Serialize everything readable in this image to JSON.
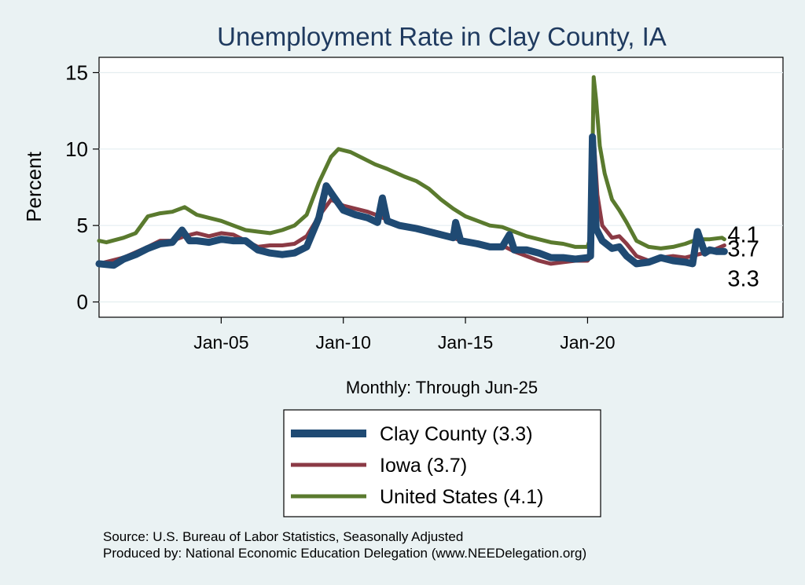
{
  "chart_data": {
    "type": "line",
    "title": "Unemployment Rate in Clay  County, IA",
    "ylabel": "Percent",
    "xlabel": "Monthly: Through Jun-25",
    "xlim": [
      2000.0,
      2028.0
    ],
    "ylim": [
      -1,
      16
    ],
    "yticks": [
      0,
      5,
      10,
      15
    ],
    "xticks": [
      {
        "value": 2005.0,
        "label": "Jan-05"
      },
      {
        "value": 2010.0,
        "label": "Jan-10"
      },
      {
        "value": 2015.0,
        "label": "Jan-15"
      },
      {
        "value": 2020.0,
        "label": "Jan-20"
      }
    ],
    "grid": true,
    "series": [
      {
        "name": "United States",
        "legend_label": "United States (4.1)",
        "color": "#5a7a2e",
        "end_value": "4.1",
        "points": [
          [
            2000.0,
            4.0
          ],
          [
            2000.3,
            3.9
          ],
          [
            2001.0,
            4.2
          ],
          [
            2001.5,
            4.5
          ],
          [
            2002.0,
            5.6
          ],
          [
            2002.5,
            5.8
          ],
          [
            2003.0,
            5.9
          ],
          [
            2003.5,
            6.2
          ],
          [
            2004.0,
            5.7
          ],
          [
            2004.5,
            5.5
          ],
          [
            2005.0,
            5.3
          ],
          [
            2005.5,
            5.0
          ],
          [
            2006.0,
            4.7
          ],
          [
            2006.5,
            4.6
          ],
          [
            2007.0,
            4.5
          ],
          [
            2007.5,
            4.7
          ],
          [
            2008.0,
            5.0
          ],
          [
            2008.5,
            5.7
          ],
          [
            2009.0,
            7.8
          ],
          [
            2009.5,
            9.5
          ],
          [
            2009.8,
            10.0
          ],
          [
            2010.3,
            9.8
          ],
          [
            2010.8,
            9.4
          ],
          [
            2011.3,
            9.0
          ],
          [
            2011.8,
            8.7
          ],
          [
            2012.5,
            8.2
          ],
          [
            2013.0,
            7.9
          ],
          [
            2013.5,
            7.4
          ],
          [
            2014.0,
            6.7
          ],
          [
            2014.5,
            6.1
          ],
          [
            2015.0,
            5.6
          ],
          [
            2015.5,
            5.3
          ],
          [
            2016.0,
            5.0
          ],
          [
            2016.5,
            4.9
          ],
          [
            2017.0,
            4.6
          ],
          [
            2017.5,
            4.3
          ],
          [
            2018.0,
            4.1
          ],
          [
            2018.5,
            3.9
          ],
          [
            2019.0,
            3.8
          ],
          [
            2019.5,
            3.6
          ],
          [
            2020.0,
            3.6
          ],
          [
            2020.15,
            4.4
          ],
          [
            2020.25,
            14.7
          ],
          [
            2020.35,
            13.2
          ],
          [
            2020.5,
            10.2
          ],
          [
            2020.7,
            8.4
          ],
          [
            2021.0,
            6.7
          ],
          [
            2021.3,
            6.0
          ],
          [
            2021.6,
            5.2
          ],
          [
            2022.0,
            4.0
          ],
          [
            2022.5,
            3.6
          ],
          [
            2023.0,
            3.5
          ],
          [
            2023.5,
            3.6
          ],
          [
            2024.0,
            3.8
          ],
          [
            2024.5,
            4.1
          ],
          [
            2025.0,
            4.1
          ],
          [
            2025.5,
            4.2
          ],
          [
            2025.6,
            4.1
          ]
        ]
      },
      {
        "name": "Iowa",
        "legend_label": "Iowa (3.7)",
        "color": "#8b3a45",
        "end_value": "3.7",
        "points": [
          [
            2000.0,
            2.5
          ],
          [
            2001.0,
            2.9
          ],
          [
            2002.0,
            3.6
          ],
          [
            2002.5,
            4.0
          ],
          [
            2003.0,
            4.0
          ],
          [
            2003.5,
            4.3
          ],
          [
            2004.0,
            4.5
          ],
          [
            2004.5,
            4.3
          ],
          [
            2005.0,
            4.5
          ],
          [
            2005.5,
            4.4
          ],
          [
            2006.0,
            4.0
          ],
          [
            2006.5,
            3.6
          ],
          [
            2007.0,
            3.7
          ],
          [
            2007.5,
            3.7
          ],
          [
            2008.0,
            3.8
          ],
          [
            2008.5,
            4.3
          ],
          [
            2009.0,
            5.6
          ],
          [
            2009.5,
            6.7
          ],
          [
            2010.0,
            6.3
          ],
          [
            2010.5,
            6.1
          ],
          [
            2011.0,
            5.9
          ],
          [
            2011.5,
            5.6
          ],
          [
            2012.0,
            5.2
          ],
          [
            2012.5,
            5.0
          ],
          [
            2013.0,
            4.9
          ],
          [
            2013.5,
            4.7
          ],
          [
            2014.0,
            4.5
          ],
          [
            2014.5,
            4.2
          ],
          [
            2015.0,
            3.9
          ],
          [
            2015.5,
            3.7
          ],
          [
            2016.0,
            3.7
          ],
          [
            2016.5,
            3.7
          ],
          [
            2017.0,
            3.3
          ],
          [
            2017.5,
            3.0
          ],
          [
            2018.0,
            2.7
          ],
          [
            2018.5,
            2.5
          ],
          [
            2019.0,
            2.6
          ],
          [
            2019.5,
            2.7
          ],
          [
            2020.0,
            2.7
          ],
          [
            2020.15,
            3.0
          ],
          [
            2020.25,
            10.8
          ],
          [
            2020.4,
            7.0
          ],
          [
            2020.6,
            5.0
          ],
          [
            2021.0,
            4.2
          ],
          [
            2021.3,
            4.3
          ],
          [
            2021.6,
            3.8
          ],
          [
            2022.0,
            3.0
          ],
          [
            2022.5,
            2.7
          ],
          [
            2023.0,
            2.9
          ],
          [
            2023.5,
            3.0
          ],
          [
            2024.0,
            2.9
          ],
          [
            2024.5,
            3.1
          ],
          [
            2025.0,
            3.3
          ],
          [
            2025.6,
            3.7
          ]
        ]
      },
      {
        "name": "Clay  County",
        "legend_label": "Clay  County (3.3)",
        "color": "#1f4a73",
        "end_value": "3.3",
        "points": [
          [
            2000.0,
            2.5
          ],
          [
            2000.6,
            2.4
          ],
          [
            2001.0,
            2.8
          ],
          [
            2001.5,
            3.1
          ],
          [
            2002.0,
            3.5
          ],
          [
            2002.5,
            3.8
          ],
          [
            2003.0,
            3.9
          ],
          [
            2003.4,
            4.7
          ],
          [
            2003.7,
            4.0
          ],
          [
            2004.0,
            4.0
          ],
          [
            2004.5,
            3.9
          ],
          [
            2005.0,
            4.1
          ],
          [
            2005.5,
            4.0
          ],
          [
            2006.0,
            4.0
          ],
          [
            2006.5,
            3.4
          ],
          [
            2007.0,
            3.2
          ],
          [
            2007.5,
            3.1
          ],
          [
            2008.0,
            3.2
          ],
          [
            2008.5,
            3.6
          ],
          [
            2009.0,
            5.5
          ],
          [
            2009.3,
            7.6
          ],
          [
            2009.6,
            6.9
          ],
          [
            2010.0,
            6.0
          ],
          [
            2010.5,
            5.7
          ],
          [
            2011.0,
            5.5
          ],
          [
            2011.4,
            5.2
          ],
          [
            2011.6,
            6.8
          ],
          [
            2011.8,
            5.3
          ],
          [
            2012.3,
            5.0
          ],
          [
            2013.0,
            4.8
          ],
          [
            2013.5,
            4.6
          ],
          [
            2014.0,
            4.4
          ],
          [
            2014.5,
            4.2
          ],
          [
            2014.6,
            5.2
          ],
          [
            2014.8,
            4.0
          ],
          [
            2015.5,
            3.8
          ],
          [
            2016.0,
            3.6
          ],
          [
            2016.5,
            3.6
          ],
          [
            2016.8,
            4.4
          ],
          [
            2017.0,
            3.4
          ],
          [
            2017.5,
            3.4
          ],
          [
            2018.0,
            3.2
          ],
          [
            2018.5,
            2.9
          ],
          [
            2019.0,
            2.9
          ],
          [
            2019.5,
            2.8
          ],
          [
            2020.0,
            2.9
          ],
          [
            2020.12,
            3.0
          ],
          [
            2020.2,
            10.8
          ],
          [
            2020.35,
            4.8
          ],
          [
            2020.6,
            4.0
          ],
          [
            2021.0,
            3.5
          ],
          [
            2021.3,
            3.6
          ],
          [
            2021.6,
            3.0
          ],
          [
            2022.0,
            2.5
          ],
          [
            2022.5,
            2.6
          ],
          [
            2023.0,
            2.9
          ],
          [
            2023.5,
            2.7
          ],
          [
            2024.0,
            2.6
          ],
          [
            2024.3,
            2.5
          ],
          [
            2024.5,
            4.6
          ],
          [
            2024.8,
            3.2
          ],
          [
            2025.0,
            3.4
          ],
          [
            2025.3,
            3.3
          ],
          [
            2025.6,
            3.3
          ]
        ]
      }
    ]
  },
  "legend": [
    {
      "label": "Clay  County (3.3)",
      "color": "#1f4a73"
    },
    {
      "label": "Iowa (3.7)",
      "color": "#8b3a45"
    },
    {
      "label": "United States (4.1)",
      "color": "#5a7a2e"
    }
  ],
  "source_lines": [
    "Source: U.S. Bureau of Labor Statistics, Seasonally Adjusted",
    "Produced by: National Economic Education Delegation (www.NEEDelegation.org)"
  ]
}
